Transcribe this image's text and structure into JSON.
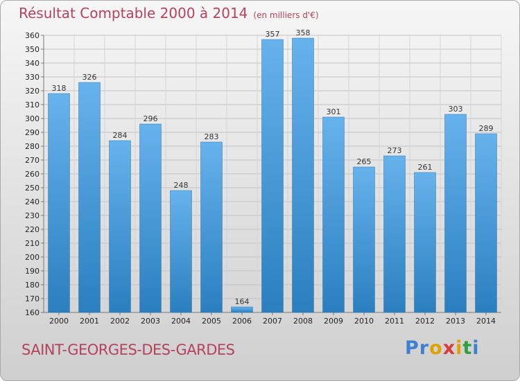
{
  "header": {
    "title": "Résultat Comptable 2000 à 2014",
    "subtitle": "(en milliers d'€)"
  },
  "footer": {
    "commune": "SAINT-GEORGES-DES-GARDES",
    "logo_letters": [
      {
        "ch": "P",
        "color": "#3d7fd1"
      },
      {
        "ch": "r",
        "color": "#3d7fd1"
      },
      {
        "ch": "o",
        "color": "#e0a000"
      },
      {
        "ch": "x",
        "color": "#d93b3b"
      },
      {
        "ch": "i",
        "color": "#e0a000"
      },
      {
        "ch": "t",
        "color": "#2e9e3e"
      },
      {
        "ch": "i",
        "color": "#3d7fd1"
      }
    ]
  },
  "colors": {
    "accent": "#b5425c",
    "bar_top": "#66b2ec",
    "bar_bottom": "#2b7fbf"
  },
  "chart_data": {
    "type": "bar",
    "title": "Résultat Comptable 2000 à 2014",
    "subtitle": "(en milliers d'€)",
    "categories": [
      "2000",
      "2001",
      "2002",
      "2003",
      "2004",
      "2005",
      "2006",
      "2007",
      "2008",
      "2009",
      "2010",
      "2011",
      "2012",
      "2013",
      "2014"
    ],
    "values": [
      318,
      326,
      284,
      296,
      248,
      283,
      164,
      357,
      358,
      301,
      265,
      273,
      261,
      303,
      289
    ],
    "ylim": [
      160,
      360
    ],
    "ytick_step": 10,
    "grid": true,
    "xlabel": "",
    "ylabel": ""
  }
}
